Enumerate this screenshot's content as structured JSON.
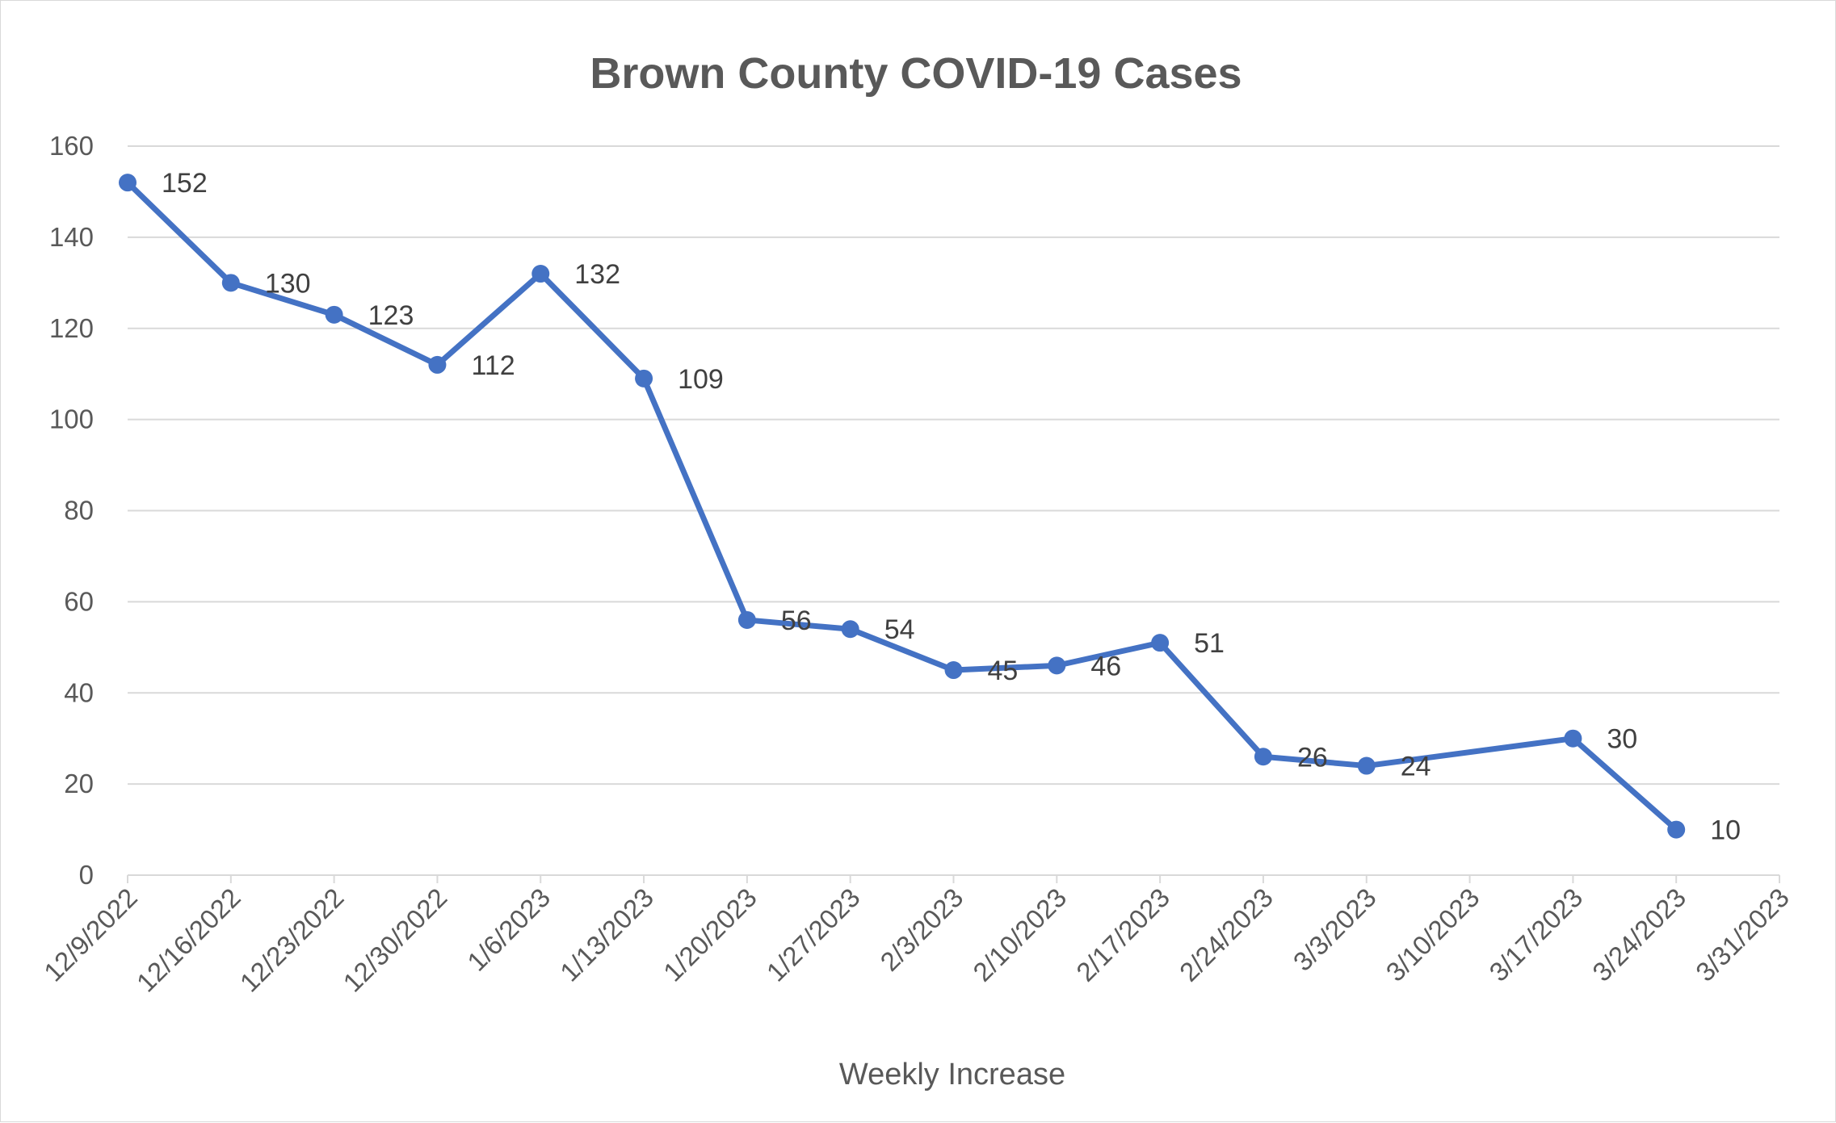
{
  "chart_data": {
    "type": "line",
    "title": "Brown County COVID-19 Cases",
    "xlabel": "Weekly Increase",
    "ylabel": "",
    "ylim": [
      0,
      160
    ],
    "yticks": [
      "0",
      "20",
      "40",
      "60",
      "80",
      "100",
      "120",
      "140",
      "160"
    ],
    "categories": [
      "12/9/2022",
      "12/16/2022",
      "12/23/2022",
      "12/30/2022",
      "1/6/2023",
      "1/13/2023",
      "1/20/2023",
      "1/27/2023",
      "2/3/2023",
      "2/10/2023",
      "2/17/2023",
      "2/24/2023",
      "3/3/2023",
      "3/10/2023",
      "3/17/2023",
      "3/24/2023",
      "3/31/2023"
    ],
    "series": [
      {
        "name": "",
        "color": "#4472c4",
        "points": [
          {
            "x": "12/9/2022",
            "y": 152
          },
          {
            "x": "12/16/2022",
            "y": 130
          },
          {
            "x": "12/23/2022",
            "y": 123
          },
          {
            "x": "12/30/2022",
            "y": 112
          },
          {
            "x": "1/6/2023",
            "y": 132
          },
          {
            "x": "1/13/2023",
            "y": 109
          },
          {
            "x": "1/20/2023",
            "y": 56
          },
          {
            "x": "1/27/2023",
            "y": 54
          },
          {
            "x": "2/3/2023",
            "y": 45
          },
          {
            "x": "2/10/2023",
            "y": 46
          },
          {
            "x": "2/17/2023",
            "y": 51
          },
          {
            "x": "2/24/2023",
            "y": 26
          },
          {
            "x": "3/3/2023",
            "y": 24
          },
          {
            "x": "3/17/2023",
            "y": 30
          },
          {
            "x": "3/24/2023",
            "y": 10
          }
        ]
      }
    ],
    "data_labels": true,
    "grid": true,
    "legend": "none"
  },
  "colors": {
    "series": "#4472c4",
    "grid": "#d9d9d9",
    "text": "#595959"
  }
}
